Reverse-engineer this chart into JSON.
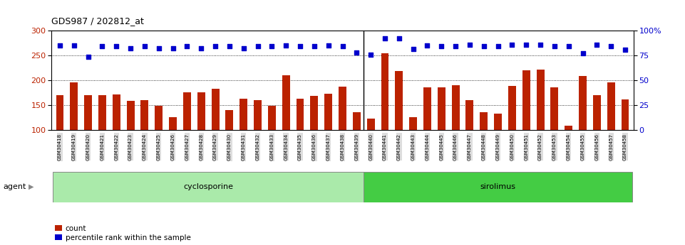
{
  "title": "GDS987 / 202812_at",
  "categories": [
    "GSM30418",
    "GSM30419",
    "GSM30420",
    "GSM30421",
    "GSM30422",
    "GSM30423",
    "GSM30424",
    "GSM30425",
    "GSM30426",
    "GSM30427",
    "GSM30428",
    "GSM30429",
    "GSM30430",
    "GSM30431",
    "GSM30432",
    "GSM30433",
    "GSM30434",
    "GSM30435",
    "GSM30436",
    "GSM30437",
    "GSM30438",
    "GSM30439",
    "GSM30440",
    "GSM30441",
    "GSM30442",
    "GSM30443",
    "GSM30444",
    "GSM30445",
    "GSM30446",
    "GSM30447",
    "GSM30448",
    "GSM30449",
    "GSM30450",
    "GSM30451",
    "GSM30452",
    "GSM30453",
    "GSM30454",
    "GSM30455",
    "GSM30456",
    "GSM30457",
    "GSM30458"
  ],
  "bar_values": [
    170,
    195,
    170,
    170,
    172,
    158,
    160,
    148,
    126,
    175,
    175,
    183,
    140,
    163,
    160,
    148,
    210,
    163,
    168,
    173,
    187,
    135,
    122,
    255,
    218,
    125,
    185,
    185,
    190,
    160,
    136,
    133,
    188,
    220,
    222,
    185,
    108,
    209,
    170,
    195,
    162
  ],
  "dot_values": [
    270,
    270,
    247,
    268,
    268,
    265,
    268,
    265,
    265,
    268,
    265,
    268,
    268,
    265,
    268,
    268,
    270,
    268,
    268,
    270,
    268,
    256,
    252,
    285,
    285,
    263,
    270,
    268,
    268,
    272,
    268,
    268,
    272,
    272,
    272,
    268,
    268,
    255,
    272,
    268,
    261
  ],
  "group_split": 22,
  "cyclosporine_color": "#AAEAAA",
  "sirolimus_color": "#44CC44",
  "bar_color": "#BB2200",
  "dot_color": "#0000CC",
  "y_min": 100,
  "y_max": 300,
  "y_ticks": [
    100,
    150,
    200,
    250,
    300
  ],
  "y_right_labels": [
    "0",
    "25",
    "50",
    "75",
    "100%"
  ],
  "gridlines": [
    150,
    200,
    250
  ],
  "tick_bg_color": "#DDDDDD",
  "legend_count": "count",
  "legend_pct": "percentile rank within the sample",
  "agent_text": "agent"
}
